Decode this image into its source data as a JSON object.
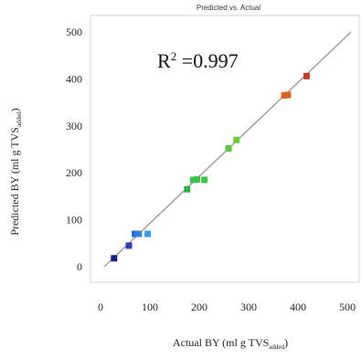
{
  "chart_data": {
    "type": "scatter",
    "title": "Predicted vs. Actual",
    "xlabel_main": "Actual BY (ml g TVS",
    "xlabel_sub": "added",
    "xlabel_close": ")",
    "ylabel_main": "Predicted BY (ml g TVS",
    "ylabel_sub": "added",
    "ylabel_close": ")",
    "annotation": {
      "prefix": "R",
      "sup": "2",
      "value": " =0.997"
    },
    "xlim": [
      0,
      500
    ],
    "ylim": [
      0,
      500
    ],
    "xticks": [
      0,
      100,
      200,
      300,
      400,
      500
    ],
    "yticks": [
      0,
      100,
      200,
      300,
      400,
      500
    ],
    "xtick_labels": [
      "0",
      "100",
      "200",
      "300",
      "400",
      "500"
    ],
    "ytick_labels": [
      "0",
      "100",
      "200",
      "300",
      "400",
      "500"
    ],
    "reference_line": {
      "from": [
        0,
        0
      ],
      "to": [
        500,
        500
      ]
    },
    "points": [
      {
        "x": 20,
        "y": 18,
        "color": "#1a1a8c"
      },
      {
        "x": 50,
        "y": 45,
        "color": "#2a3fb0"
      },
      {
        "x": 62,
        "y": 70,
        "color": "#2d6fd6"
      },
      {
        "x": 70,
        "y": 70,
        "color": "#2d82e0"
      },
      {
        "x": 88,
        "y": 70,
        "color": "#3a9be0"
      },
      {
        "x": 168,
        "y": 165,
        "color": "#2fb34a"
      },
      {
        "x": 180,
        "y": 185,
        "color": "#3cbf4c"
      },
      {
        "x": 188,
        "y": 186,
        "color": "#3cbf4c"
      },
      {
        "x": 203,
        "y": 185,
        "color": "#42c14a"
      },
      {
        "x": 252,
        "y": 252,
        "color": "#5cc83a"
      },
      {
        "x": 268,
        "y": 270,
        "color": "#6acb38"
      },
      {
        "x": 365,
        "y": 365,
        "color": "#d9641c"
      },
      {
        "x": 372,
        "y": 366,
        "color": "#d9641c"
      },
      {
        "x": 410,
        "y": 406,
        "color": "#c0392b"
      }
    ]
  }
}
